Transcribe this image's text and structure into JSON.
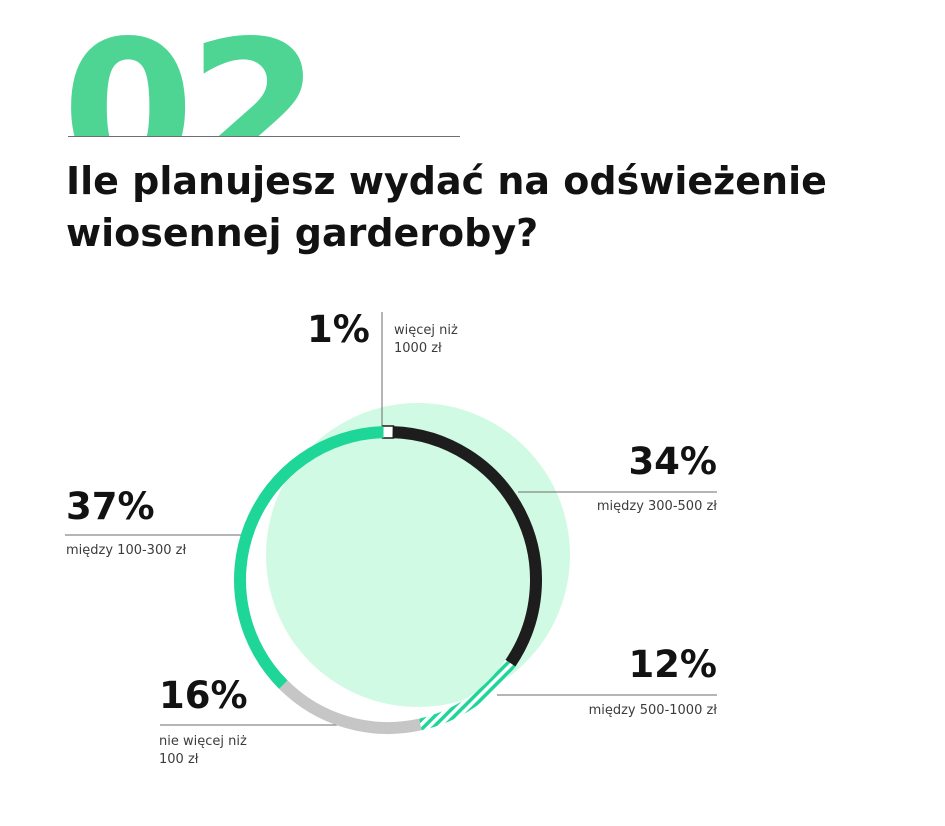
{
  "header": {
    "number": "02",
    "question_line1": "Ile planujesz wydać na odświeżenie",
    "question_line2": "wiosennej garderoby?"
  },
  "colors": {
    "accent": "#4ed594",
    "ring_green": "#1ed697",
    "bg_blob": "#d1fae4",
    "black": "#1d1d1d",
    "gray": "#c6c6c6",
    "hatch": "#1ed697"
  },
  "chart_data": {
    "type": "pie",
    "title": "Ile planujesz wydać na odświeżenie wiosennej garderoby?",
    "slices": [
      {
        "label_line1": "więcej niż",
        "label_line2": "1000 zł",
        "value": 1,
        "display": "1%",
        "color": "#ffffff",
        "style": "outlined"
      },
      {
        "label_line1": "między 300-500 zł",
        "label_line2": "",
        "value": 34,
        "display": "34%",
        "color": "#1d1d1d",
        "style": "solid"
      },
      {
        "label_line1": "między 500-1000 zł",
        "label_line2": "",
        "value": 12,
        "display": "12%",
        "color": "#1ed697",
        "style": "hatched"
      },
      {
        "label_line1": "nie więcej niż",
        "label_line2": "100 zł",
        "value": 16,
        "display": "16%",
        "color": "#c6c6c6",
        "style": "solid"
      },
      {
        "label_line1": "między 100-300 zł",
        "label_line2": "",
        "value": 37,
        "display": "37%",
        "color": "#1ed697",
        "style": "solid"
      }
    ]
  }
}
